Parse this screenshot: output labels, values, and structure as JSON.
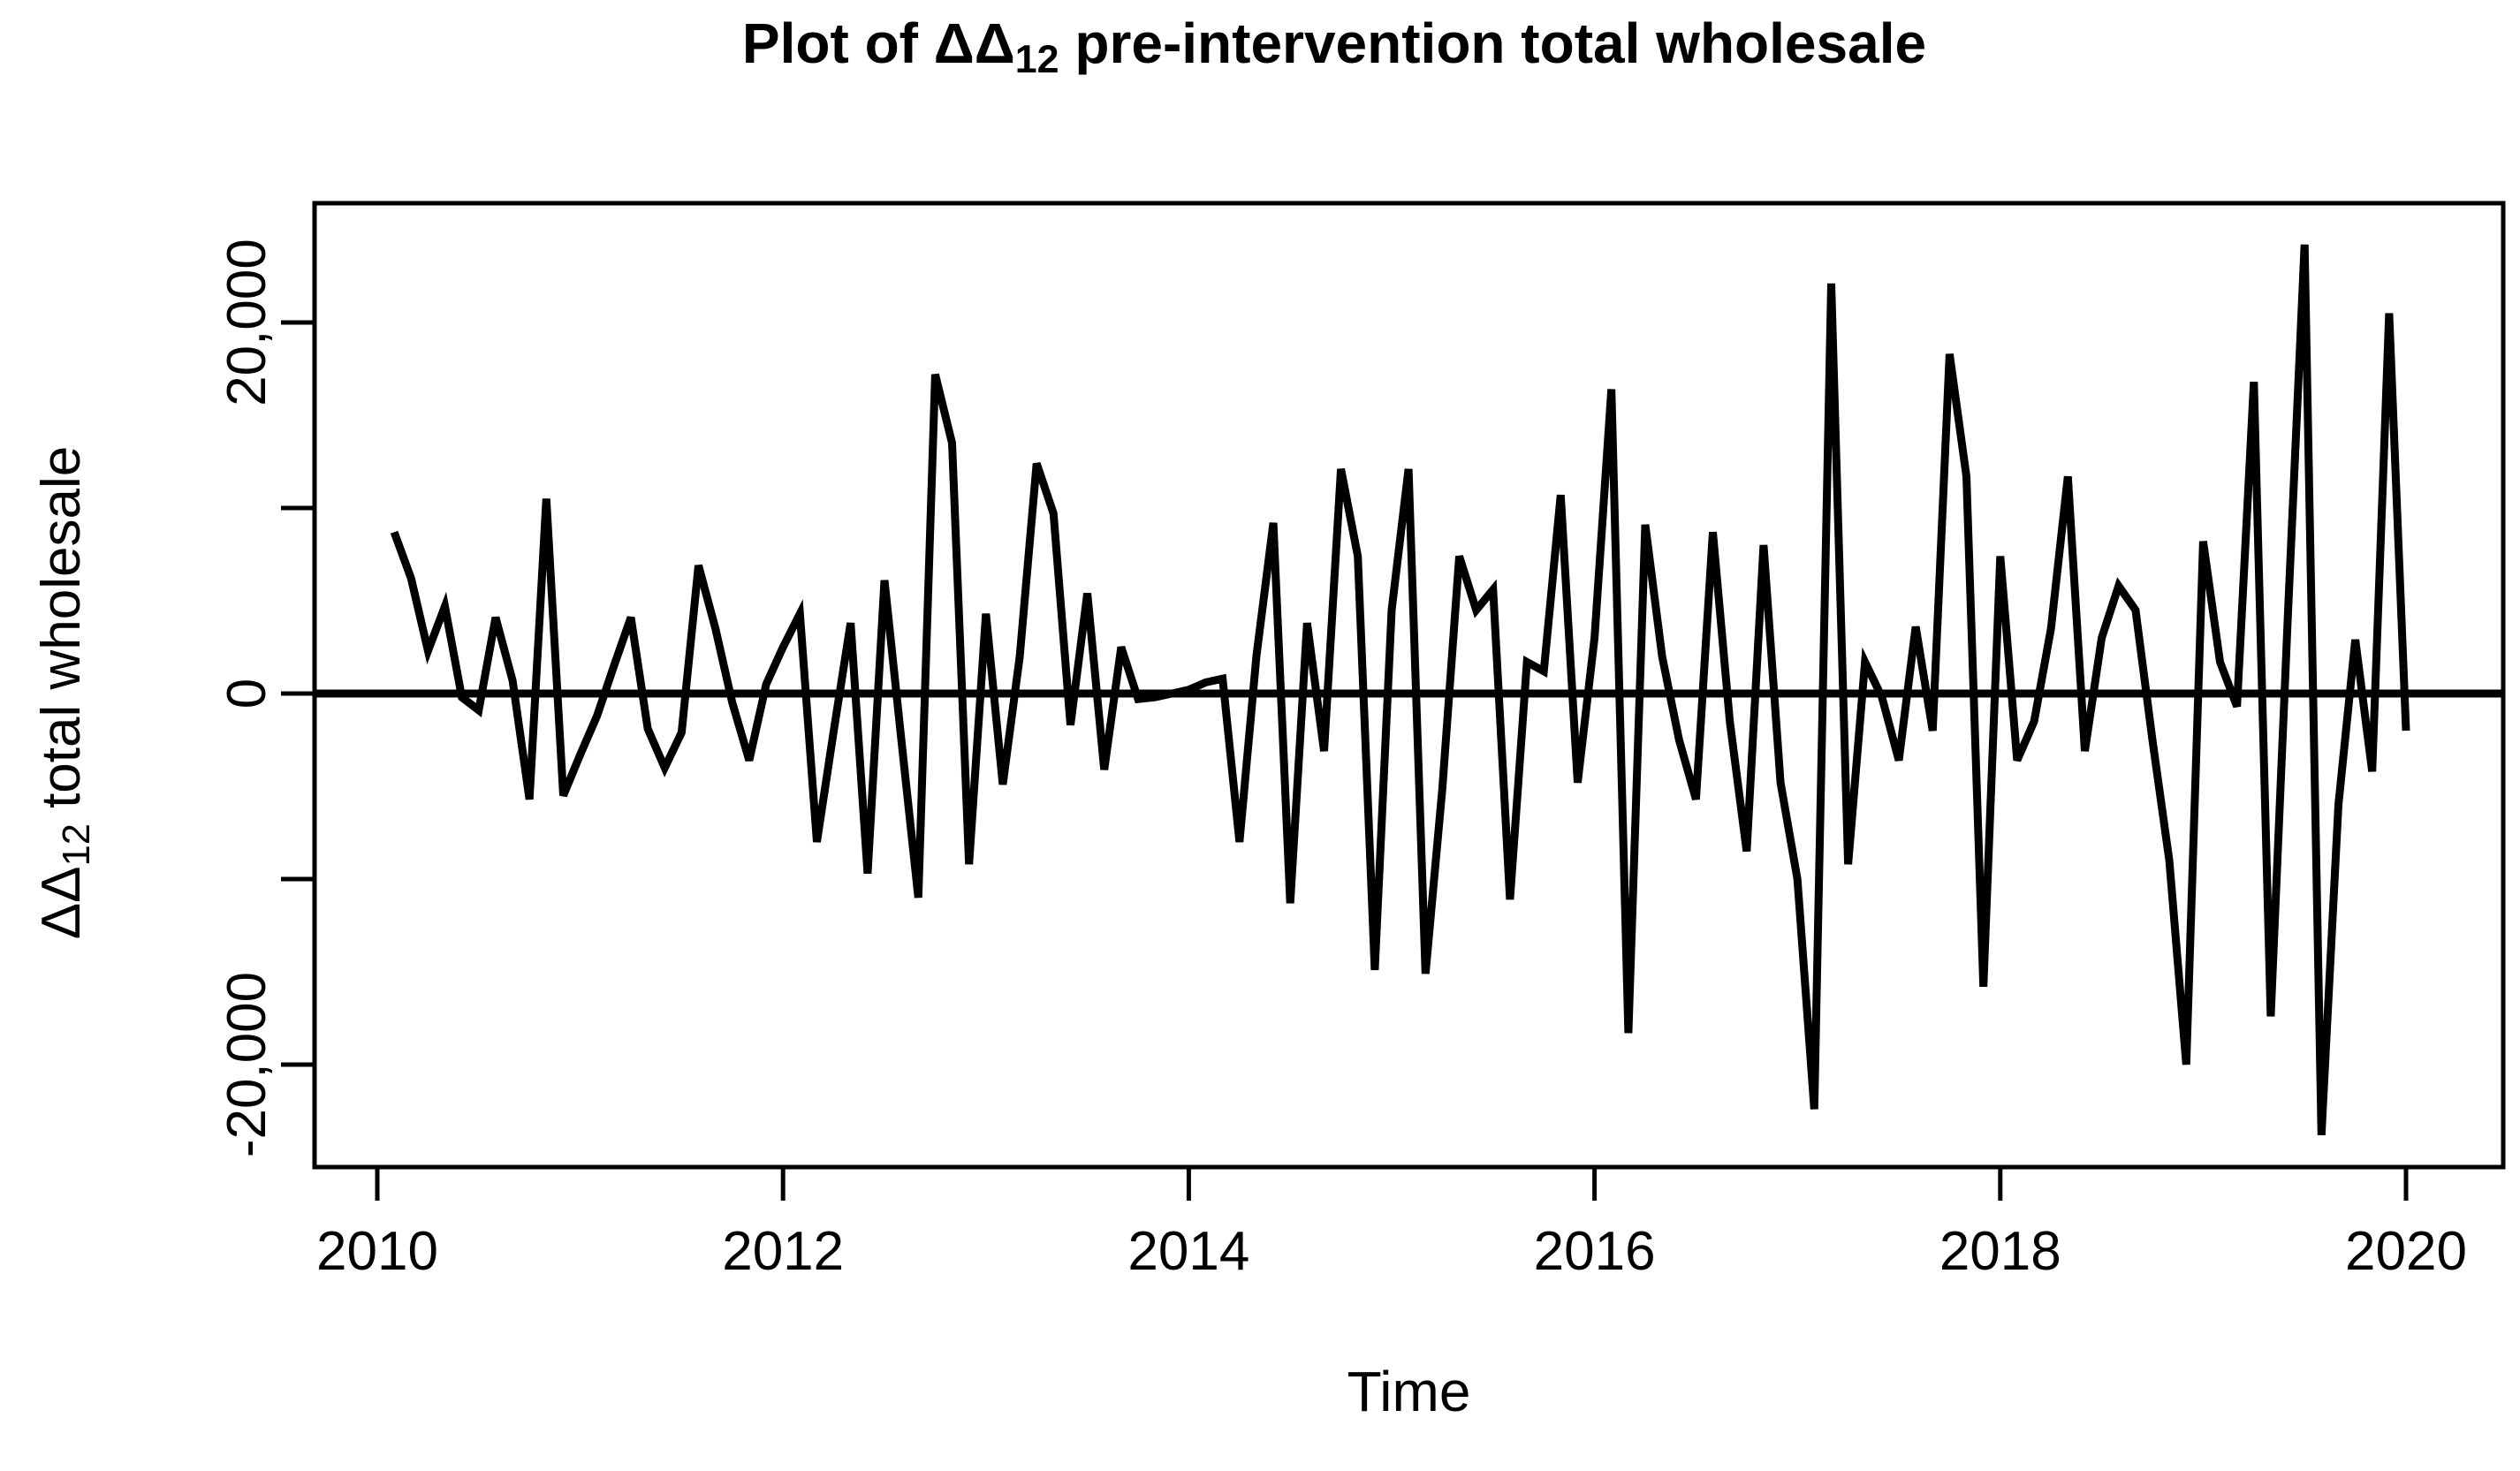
{
  "page": {
    "background_color": "#ffffff",
    "foreground_color": "#000000"
  },
  "chart": {
    "title_prefix": "Plot of ΔΔ",
    "title_sub": "12",
    "title_suffix": " pre-intervention total wholesale",
    "y_axis_label_prefix": "ΔΔ",
    "y_axis_label_sub": "12",
    "y_axis_label_suffix": " total wholesale",
    "x_axis_label": "Time"
  },
  "chart_data": {
    "type": "line",
    "title": "Plot of ΔΔ12 pre-intervention total wholesale",
    "xlabel": "Time",
    "ylabel": "ΔΔ12 total wholesale",
    "line_color": "#000000",
    "background": "#ffffff",
    "grid": false,
    "legend": null,
    "hline_y": 0,
    "xlim": [
      2009.69,
      2020.48
    ],
    "ylim": [
      -25500,
      26400
    ],
    "x_ticks": [
      2010,
      2012,
      2014,
      2016,
      2018,
      2020
    ],
    "x_tick_labels": [
      "2010",
      "2012",
      "2014",
      "2016",
      "2018",
      "2020"
    ],
    "y_ticks": [
      -20000,
      -10000,
      0,
      10000,
      20000
    ],
    "y_tick_labels": [
      "-20,000",
      "",
      "0",
      "",
      "20,000"
    ],
    "series": [
      {
        "name": "delta_delta12_total_wholesale",
        "start_year": 2010,
        "start_month": 2,
        "frequency": "monthly",
        "values": [
          8700,
          6200,
          2300,
          4700,
          -200,
          -900,
          4100,
          700,
          -5700,
          10500,
          -5500,
          -3300,
          -1200,
          1500,
          4100,
          -1900,
          -4000,
          -2100,
          6900,
          3500,
          -500,
          -3600,
          500,
          2500,
          4300,
          -8000,
          -2000,
          3800,
          -9700,
          6100,
          -2500,
          -11000,
          17200,
          13500,
          -9200,
          4300,
          -4900,
          2000,
          12400,
          9700,
          -1700,
          5400,
          -4100,
          2500,
          -300,
          -200,
          0,
          200,
          600,
          800,
          -8000,
          2000,
          9200,
          -11300,
          3800,
          -3100,
          12100,
          7400,
          -14900,
          4500,
          12100,
          -15100,
          -5100,
          7400,
          4500,
          5600,
          -11100,
          1700,
          1200,
          10700,
          -4800,
          3000,
          16400,
          -18300,
          9100,
          2000,
          -2500,
          -5700,
          8700,
          -1500,
          -8500,
          8000,
          -4800,
          -10000,
          -22400,
          22100,
          -9200,
          1700,
          -200,
          -3600,
          3600,
          -2000,
          18300,
          11700,
          -15800,
          7400,
          -3600,
          -1500,
          3500,
          11700,
          -3100,
          3000,
          5800,
          4500,
          -2500,
          -9000,
          -20000,
          8200,
          1700,
          -700,
          16800,
          -17400,
          4000,
          24200,
          -23800,
          -6000,
          2900,
          -4200,
          20500,
          -2000
        ]
      }
    ]
  }
}
